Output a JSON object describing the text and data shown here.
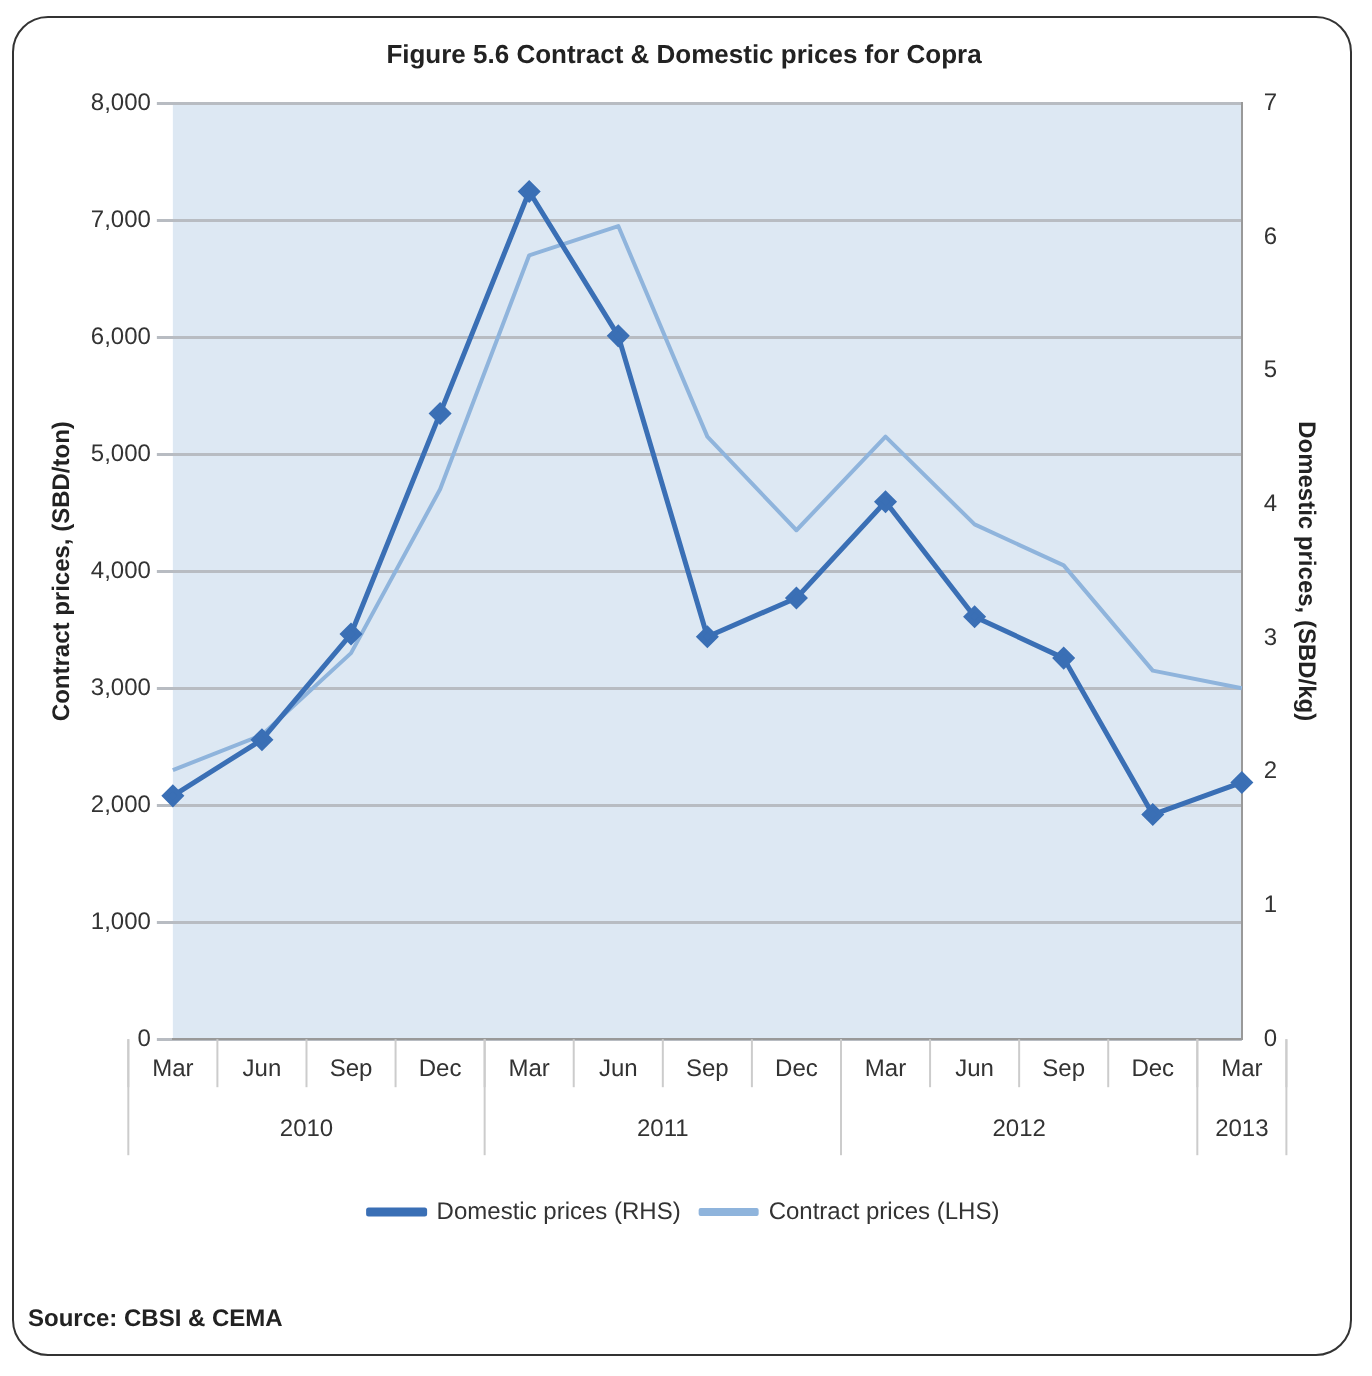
{
  "chart_data": {
    "type": "line",
    "title": "Figure 5.6 Contract & Domestic prices for Copra",
    "categories": [
      "Mar",
      "Jun",
      "Sep",
      "Dec",
      "Mar",
      "Jun",
      "Sep",
      "Dec",
      "Mar",
      "Jun",
      "Sep",
      "Dec",
      "Mar"
    ],
    "series": [
      {
        "name": "Domestic prices (RHS)",
        "color": "#3a6fb5",
        "axis": "y2",
        "marker": "diamond",
        "values": [
          1.82,
          2.24,
          3.03,
          4.68,
          6.34,
          5.26,
          3.01,
          3.3,
          4.02,
          3.16,
          2.85,
          1.68,
          1.92
        ]
      },
      {
        "name": "Contract prices (LHS)",
        "color": "#8fb4dc",
        "marker": "none",
        "values": [
          2300,
          2600,
          3300,
          4700,
          6700,
          6950,
          5150,
          4350,
          5150,
          4400,
          4050,
          3150,
          3000
        ]
      }
    ],
    "ylabel": "Contract prices, (SBD/ton)",
    "y2label": "Domestic prices, (SBD/kg)",
    "ylim": [
      0,
      8000
    ],
    "yticks": [
      0,
      {
        "value": 1000,
        "label": "1,000"
      },
      {
        "value": 2000,
        "label": "2,000"
      },
      {
        "value": 3000,
        "label": "3,000"
      },
      {
        "value": 4000,
        "label": "4,000"
      },
      {
        "value": 5000,
        "label": "5,000"
      },
      {
        "value": 6000,
        "label": "6,000"
      },
      {
        "value": 7000,
        "label": "7,000"
      },
      {
        "value": 8000,
        "label": "8,000"
      }
    ],
    "y2lim": [
      0,
      7
    ],
    "y2ticks": [
      0,
      1,
      2,
      3,
      4,
      5,
      6,
      7
    ],
    "grid": "y",
    "legend": "bottom",
    "line_style": "solid",
    "annotations": [
      "2010",
      "2011",
      "2012",
      "2013",
      "Source: CBSI & CEMA"
    ]
  }
}
